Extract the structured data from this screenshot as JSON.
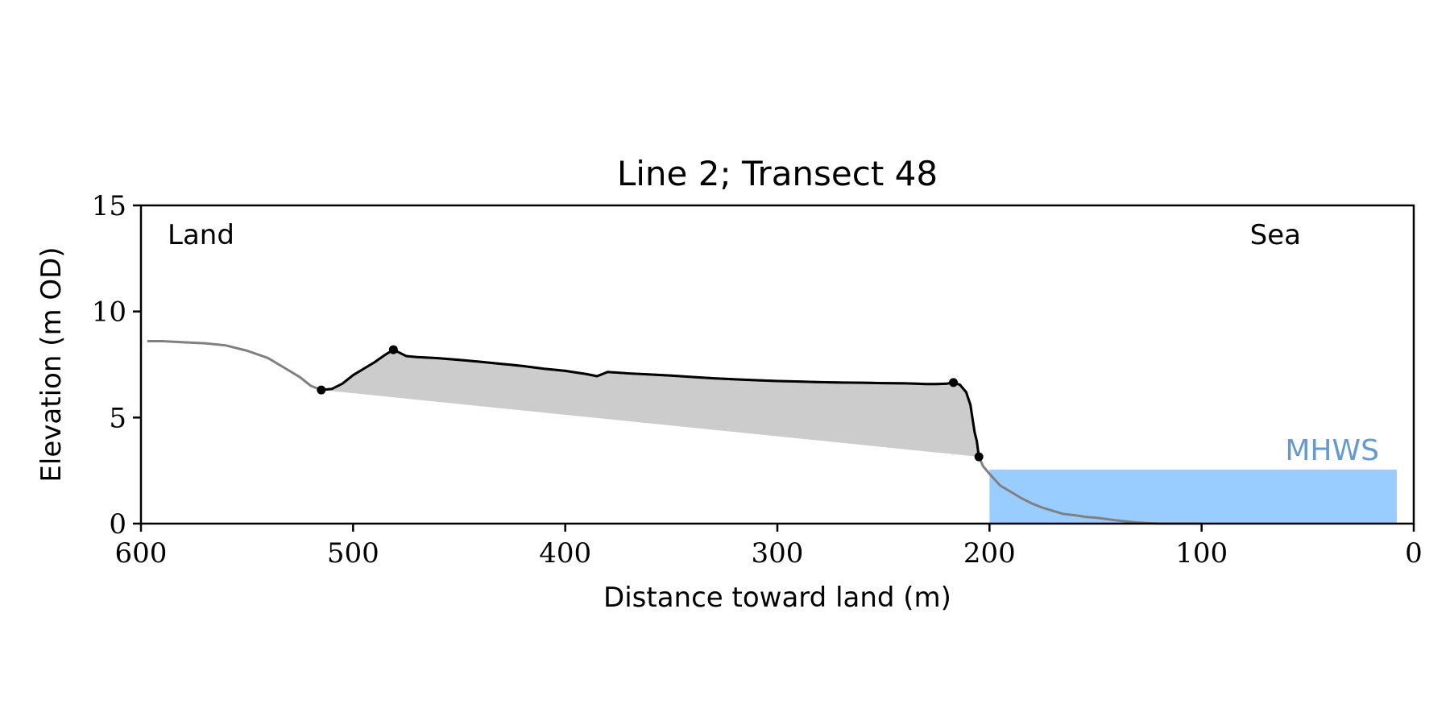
{
  "chart_data": {
    "type": "area",
    "title": "Line 2; Transect 48",
    "xlabel": "Distance toward land (m)",
    "ylabel": "Elevation (m OD)",
    "xlim": [
      600,
      0
    ],
    "ylim": [
      0,
      15
    ],
    "x_ticks": [
      600,
      500,
      400,
      300,
      200,
      100,
      0
    ],
    "y_ticks": [
      0,
      5,
      10,
      15
    ],
    "x_tick_labels": [
      "600",
      "500",
      "400",
      "300",
      "200",
      "100",
      "0"
    ],
    "y_tick_labels": [
      "0",
      "5",
      "10",
      "15"
    ],
    "grid": false,
    "annotations": {
      "land": "Land",
      "sea": "Sea",
      "mhws": "MHWS"
    },
    "colors": {
      "profile_full": "#808080",
      "profile_dune": "#000000",
      "dune_fill": "#cccccc",
      "mhws_fill": "#99ccff",
      "mhws_text": "#6699cc"
    },
    "mhws": {
      "elevation": 2.55,
      "x_start": 200,
      "x_end": 8
    },
    "profile": {
      "x": [
        597,
        590,
        580,
        570,
        560,
        550,
        540,
        530,
        525,
        520,
        515,
        510,
        505,
        500,
        495,
        490,
        485,
        481,
        475,
        470,
        460,
        450,
        440,
        430,
        420,
        410,
        400,
        390,
        385,
        380,
        370,
        360,
        350,
        340,
        330,
        320,
        310,
        300,
        290,
        280,
        270,
        260,
        250,
        240,
        235,
        230,
        225,
        220,
        217,
        214,
        211,
        209,
        207,
        206,
        205,
        203,
        200,
        195,
        190,
        185,
        180,
        175,
        170,
        165,
        160,
        155,
        150,
        145,
        140,
        135,
        130,
        125,
        120,
        110,
        100
      ],
      "y": [
        8.6,
        8.6,
        8.55,
        8.5,
        8.4,
        8.15,
        7.8,
        7.2,
        6.9,
        6.5,
        6.3,
        6.35,
        6.6,
        7.0,
        7.3,
        7.6,
        7.95,
        8.2,
        7.9,
        7.85,
        7.8,
        7.72,
        7.63,
        7.53,
        7.43,
        7.3,
        7.2,
        7.05,
        6.95,
        7.15,
        7.08,
        7.03,
        6.98,
        6.91,
        6.85,
        6.8,
        6.76,
        6.72,
        6.7,
        6.67,
        6.65,
        6.64,
        6.62,
        6.61,
        6.6,
        6.58,
        6.58,
        6.6,
        6.65,
        6.55,
        6.2,
        5.6,
        4.3,
        3.9,
        3.15,
        2.7,
        2.35,
        1.8,
        1.5,
        1.2,
        0.95,
        0.75,
        0.6,
        0.45,
        0.4,
        0.32,
        0.28,
        0.22,
        0.15,
        0.1,
        0.05,
        0.02,
        0.0,
        0.0,
        0.0
      ]
    },
    "dune": {
      "toe_landward": [
        515,
        6.3
      ],
      "crest_landward": [
        481,
        8.2
      ],
      "crest_seaward": [
        217,
        6.65
      ],
      "toe_seaward": [
        205,
        3.15
      ]
    }
  }
}
